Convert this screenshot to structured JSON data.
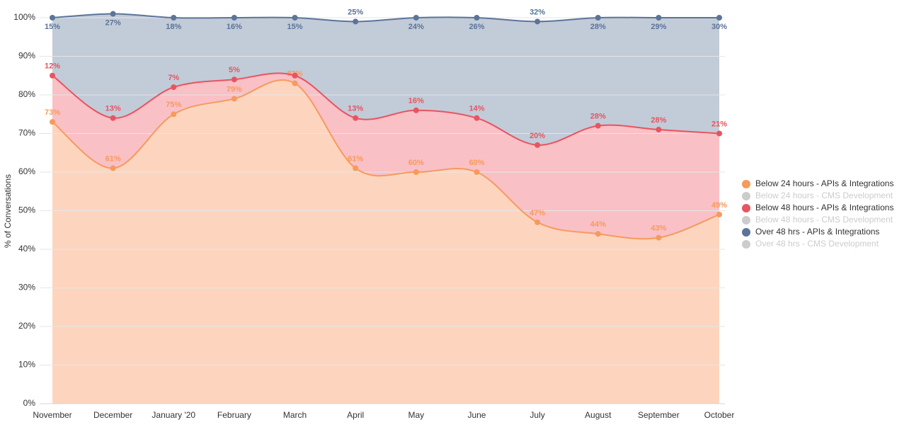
{
  "chart_data": {
    "type": "stacked-area",
    "y_label": "% of Conversations",
    "categories": [
      "November",
      "December",
      "January '20",
      "February",
      "March",
      "April",
      "May",
      "June",
      "July",
      "August",
      "September",
      "October"
    ],
    "ylim": [
      0,
      100
    ],
    "yticks": [
      {
        "value": 0,
        "label": "0%"
      },
      {
        "value": 10,
        "label": "10%"
      },
      {
        "value": 20,
        "label": "20%"
      },
      {
        "value": 30,
        "label": "30%"
      },
      {
        "value": 40,
        "label": "40%"
      },
      {
        "value": 50,
        "label": "50%"
      },
      {
        "value": 60,
        "label": "60%"
      },
      {
        "value": 70,
        "label": "70%"
      },
      {
        "value": 80,
        "label": "80%"
      },
      {
        "value": 90,
        "label": "90%"
      },
      {
        "value": 100,
        "label": "100%"
      }
    ],
    "grid": true,
    "legend": "right",
    "series": [
      {
        "name": "Below 24 hours - APIs & Integrations",
        "color": "#f79a5c",
        "fill": "#fdd5bf",
        "visible": true,
        "values": [
          73,
          61,
          75,
          79,
          83,
          61,
          60,
          60,
          47,
          44,
          43,
          49
        ],
        "value_labels": [
          "73%",
          "61%",
          "75%",
          "79%",
          "83%",
          "61%",
          "60%",
          "60%",
          "47%",
          "44%",
          "43%",
          "49%"
        ]
      },
      {
        "name": "Below 24 hours - CMS Development",
        "color": "#cccccc",
        "visible": false
      },
      {
        "name": "Below 48 hours - APIs & Integrations",
        "color": "#e8545f",
        "fill": "#f9c0c6",
        "visible": true,
        "values": [
          12,
          13,
          7,
          5,
          2,
          13,
          16,
          14,
          20,
          28,
          28,
          21
        ],
        "value_labels": [
          "12%",
          "13%",
          "7%",
          "5%",
          null,
          "13%",
          "16%",
          "14%",
          "20%",
          "28%",
          "28%",
          "21%"
        ]
      },
      {
        "name": "Below 48 hours - CMS Development",
        "color": "#cccccc",
        "visible": false
      },
      {
        "name": "Over 48 hrs - APIs & Integrations",
        "color": "#5b7499",
        "fill": "#c2cbd8",
        "visible": true,
        "values": [
          15,
          27,
          18,
          16,
          15,
          25,
          24,
          26,
          32,
          28,
          29,
          30
        ],
        "value_labels": [
          "15%",
          "27%",
          "18%",
          "16%",
          "15%",
          "25%",
          "24%",
          "26%",
          "32%",
          "28%",
          "29%",
          "30%"
        ]
      },
      {
        "name": "Over 48 hrs - CMS Development",
        "color": "#cccccc",
        "visible": false
      }
    ]
  }
}
